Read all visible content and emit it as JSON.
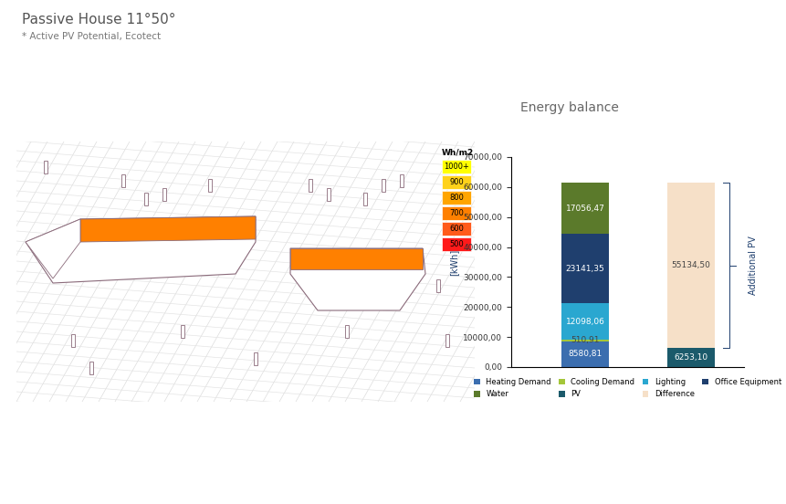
{
  "header": {
    "title": "Passive House 11°50°",
    "subtitle": "* Active PV Potential, Ecotect"
  },
  "render_legend": {
    "unit": "Wh/m2",
    "levels": [
      {
        "label": "1000+",
        "color": "#ffff00"
      },
      {
        "label": "900",
        "color": "#ffd21a"
      },
      {
        "label": "800",
        "color": "#ffa500"
      },
      {
        "label": "700",
        "color": "#ff8000"
      },
      {
        "label": "600",
        "color": "#ff5a1a"
      },
      {
        "label": "500",
        "color": "#ff1a1a"
      }
    ]
  },
  "chart_data": {
    "type": "bar",
    "stacked": true,
    "title": "Energy balance",
    "categories": [
      null,
      null
    ],
    "y_label": "[kWh]",
    "ylim": [
      0,
      70000
    ],
    "yticks": [
      {
        "value": 0,
        "label": "0,00"
      },
      {
        "value": 10000,
        "label": "10000,00"
      },
      {
        "value": 20000,
        "label": "20000,00"
      },
      {
        "value": 30000,
        "label": "30000,00"
      },
      {
        "value": 40000,
        "label": "40000,00"
      },
      {
        "value": 50000,
        "label": "50000,00"
      },
      {
        "value": 60000,
        "label": "60000,00"
      },
      {
        "value": 70000,
        "label": "70000,00"
      }
    ],
    "data_labels": true,
    "legend": "bottom",
    "annotations": [
      {
        "text": "Additional PV"
      }
    ],
    "series": [
      {
        "name": "Heating Demand",
        "color": "#3b6eaf",
        "values": [
          8580.81,
          null
        ],
        "value_labels": [
          "8580,81",
          null
        ]
      },
      {
        "name": "Cooling Demand",
        "color": "#a4c639",
        "values": [
          510.91,
          null
        ],
        "value_labels": [
          "510,91",
          null
        ]
      },
      {
        "name": "Lighting",
        "color": "#2aa7d0",
        "values": [
          12098.06,
          null
        ],
        "value_labels": [
          "12098,06",
          null
        ]
      },
      {
        "name": "Office Equipment",
        "color": "#1f3f6e",
        "values": [
          23141.35,
          null
        ],
        "value_labels": [
          "23141,35",
          null
        ]
      },
      {
        "name": "Water",
        "color": "#5b7a2b",
        "values": [
          17056.47,
          null
        ],
        "value_labels": [
          "17056,47",
          null
        ]
      },
      {
        "name": "PV",
        "color": "#1b5a6b",
        "values": [
          null,
          6253.1
        ],
        "value_labels": [
          null,
          "6253,10"
        ]
      },
      {
        "name": "Difference",
        "color": "#f6e0c8",
        "values": [
          null,
          55134.5
        ],
        "value_labels": [
          null,
          "55134,50"
        ]
      }
    ]
  }
}
